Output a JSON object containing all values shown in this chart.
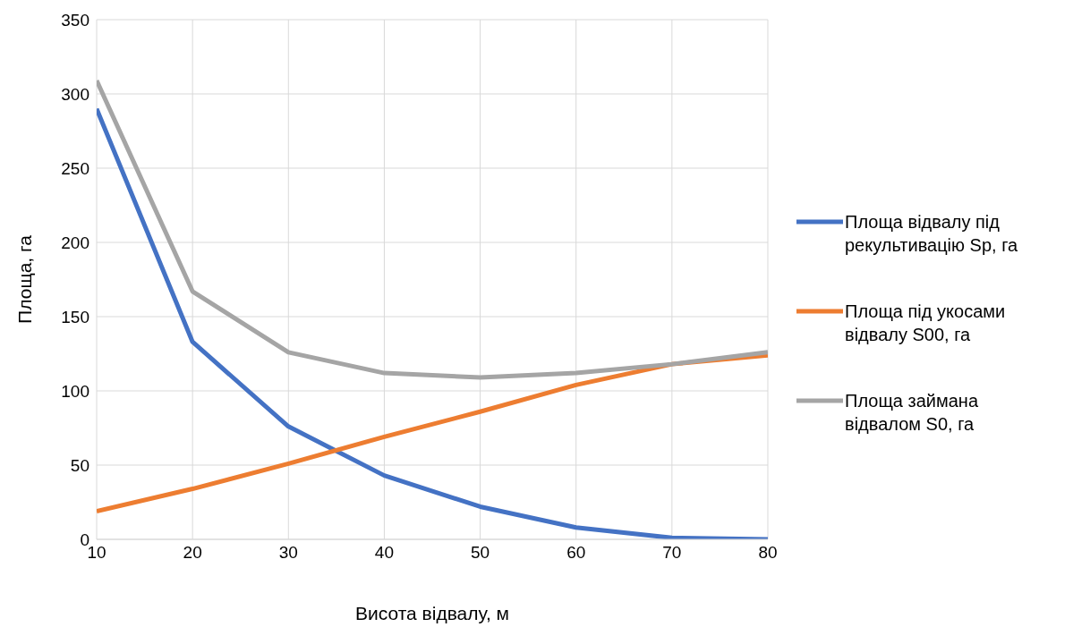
{
  "chart_data": {
    "type": "line",
    "xlabel": "Висота відвалу, м",
    "ylabel": "Площа, га",
    "x": [
      10,
      20,
      30,
      40,
      50,
      60,
      70,
      80
    ],
    "series": [
      {
        "name": "Площа відвалу під рекультивацію Sр, га",
        "color": "#4472c4",
        "values": [
          290,
          133,
          76,
          43,
          22,
          8,
          1,
          0
        ]
      },
      {
        "name": "Площа під укосами відвалу S00, га",
        "color": "#ed7d31",
        "values": [
          19,
          34,
          51,
          69,
          86,
          104,
          118,
          124
        ]
      },
      {
        "name": "Площа займана відвалом S0, га",
        "color": "#a5a5a5",
        "values": [
          309,
          167,
          126,
          112,
          109,
          112,
          118,
          126
        ]
      }
    ],
    "xlim": [
      10,
      80
    ],
    "xticks": [
      10,
      20,
      30,
      40,
      50,
      60,
      70,
      80
    ],
    "ylim": [
      0,
      350
    ],
    "yticks": [
      0,
      50,
      100,
      150,
      200,
      250,
      300,
      350
    ],
    "grid": true,
    "legend": "right",
    "marker": "none",
    "line_style": "solid"
  }
}
